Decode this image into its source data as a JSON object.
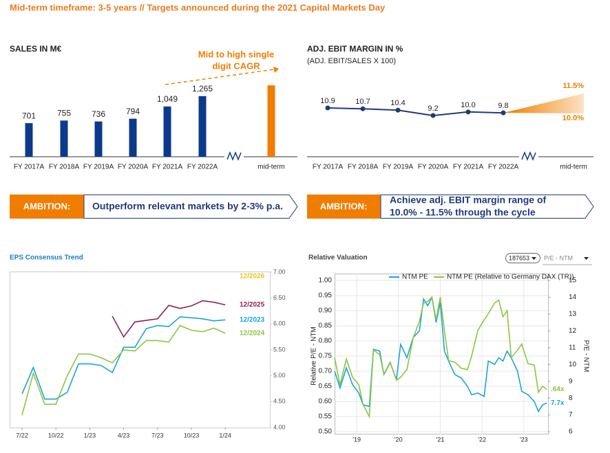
{
  "header": {
    "title": "Mid-term timeframe: 3-5 years // Targets announced during the 2021 Capital Markets Day"
  },
  "chart_data": [
    {
      "type": "bar",
      "title": "SALES IN M€",
      "categories": [
        "FY 2017A",
        "FY 2018A",
        "FY 2019A",
        "FY 2020A",
        "FY 2021A",
        "FY 2022A",
        "mid-term"
      ],
      "values": [
        701,
        755,
        736,
        794,
        1049,
        1265,
        1490
      ],
      "value_labels": [
        "701",
        "755",
        "736",
        "794",
        "1,049",
        "1,265",
        null
      ],
      "colors": [
        "#0b3a8c",
        "#0b3a8c",
        "#0b3a8c",
        "#0b3a8c",
        "#0b3a8c",
        "#0b3a8c",
        "#f07d00"
      ],
      "annotation": [
        "Mid to high single",
        "digit CAGR"
      ]
    },
    {
      "type": "line",
      "title": "ADJ. EBIT MARGIN IN %",
      "subtitle": "(ADJ. EBIT/SALES X 100)",
      "categories": [
        "FY 2017A",
        "FY 2018A",
        "FY 2019A",
        "FY 2020A",
        "FY 2021A",
        "FY 2022A",
        "mid-term"
      ],
      "values": [
        10.9,
        10.7,
        10.4,
        9.2,
        10.0,
        9.8,
        null
      ],
      "value_labels": [
        "10.9",
        "10.7",
        "10.4",
        "9.2",
        "10.0",
        "9.8",
        null
      ],
      "color": "#1f3a7a",
      "target": {
        "values": [
          10.0,
          11.5
        ],
        "labels": [
          "10.0%",
          "11.5%"
        ],
        "color": "#f07d00"
      }
    },
    {
      "type": "line",
      "title": "EPS Consensus Trend",
      "x": [
        "7/22",
        "8/22",
        "9/22",
        "10/22",
        "11/22",
        "12/22",
        "1/23",
        "2/23",
        "3/23",
        "4/23",
        "5/23",
        "6/23",
        "7/23",
        "8/23",
        "9/23",
        "10/23",
        "11/23",
        "12/23",
        "1/24"
      ],
      "xticks": [
        "7/22",
        "10/22",
        "1/23",
        "4/23",
        "7/23",
        "10/23",
        "1/24"
      ],
      "ylim": [
        4.0,
        7.0
      ],
      "yticks": [
        {
          "value": 4.0,
          "label": "4.00"
        },
        {
          "value": 4.5,
          "label": "4.50"
        },
        {
          "value": 5.0,
          "label": "5.00"
        },
        {
          "value": 5.5,
          "label": "5.50"
        },
        {
          "value": 6.0,
          "label": "6.00"
        },
        {
          "value": 6.5,
          "label": "6.50"
        },
        {
          "value": 7.0,
          "label": "7.00"
        }
      ],
      "series": [
        {
          "name": "12/2026",
          "color": "#e8c619",
          "values": [
            null,
            null,
            null,
            null,
            null,
            null,
            null,
            null,
            null,
            null,
            null,
            null,
            null,
            null,
            null,
            null,
            null,
            null,
            null
          ]
        },
        {
          "name": "12/2025",
          "color": "#8b2252",
          "values": [
            null,
            null,
            null,
            null,
            null,
            null,
            null,
            null,
            6.15,
            5.75,
            6.04,
            6.07,
            6.1,
            6.36,
            6.3,
            6.35,
            6.45,
            6.42,
            6.37
          ]
        },
        {
          "name": "12/2023",
          "color": "#1aa3e0",
          "values": [
            4.65,
            5.16,
            4.55,
            4.55,
            4.68,
            5.23,
            5.23,
            5.2,
            5.06,
            5.55,
            5.55,
            5.91,
            5.97,
            5.95,
            6.14,
            6.12,
            6.1,
            6.06,
            6.08
          ]
        },
        {
          "name": "12/2024",
          "color": "#8cc63f",
          "values": [
            4.24,
            5.05,
            4.45,
            4.45,
            5.0,
            5.42,
            5.42,
            5.35,
            5.25,
            5.5,
            5.48,
            5.68,
            5.68,
            5.65,
            5.97,
            5.88,
            5.85,
            5.92,
            5.82
          ]
        }
      ]
    },
    {
      "type": "line",
      "title": "Relative Valuation",
      "controls": [
        "187653",
        "P/E - NTM"
      ],
      "x": [
        2018.47,
        2018.6,
        2018.75,
        2018.9,
        2019.05,
        2019.15,
        2019.3,
        2019.4,
        2019.55,
        2019.65,
        2019.8,
        2019.95,
        2020.05,
        2020.2,
        2020.35,
        2020.5,
        2020.6,
        2020.7,
        2020.8,
        2020.9,
        2021.0,
        2021.1,
        2021.2,
        2021.35,
        2021.5,
        2021.65,
        2021.75,
        2021.9,
        2022.05,
        2022.15,
        2022.3,
        2022.4,
        2022.5,
        2022.6,
        2022.7,
        2022.85,
        2022.95,
        2023.1,
        2023.25,
        2023.35,
        2023.45,
        2023.55
      ],
      "xlim": [
        2018.47,
        2023.58
      ],
      "xticks": [
        {
          "value": 2019,
          "label": "'19"
        },
        {
          "value": 2020,
          "label": "'20"
        },
        {
          "value": 2021,
          "label": "'21"
        },
        {
          "value": 2022,
          "label": "'22"
        },
        {
          "value": 2023,
          "label": "'23"
        }
      ],
      "ylim": [
        0.5,
        1.0
      ],
      "yticks": [
        {
          "value": 0.5,
          "label": "0.50"
        },
        {
          "value": 0.55,
          "label": "0.55"
        },
        {
          "value": 0.6,
          "label": "0.60"
        },
        {
          "value": 0.65,
          "label": "0.65"
        },
        {
          "value": 0.7,
          "label": "0.70"
        },
        {
          "value": 0.75,
          "label": "0.75"
        },
        {
          "value": 0.8,
          "label": "0.80"
        },
        {
          "value": 0.85,
          "label": "0.85"
        },
        {
          "value": 0.9,
          "label": "0.90"
        },
        {
          "value": 0.95,
          "label": "0.95"
        },
        {
          "value": 1.0,
          "label": "1.00"
        }
      ],
      "y2lim": [
        6,
        15
      ],
      "y2ticks": [
        6,
        7,
        8,
        9,
        10,
        11,
        12,
        13,
        14,
        15
      ],
      "ylabel": "Relative P/E - NTM",
      "y2label": "P/E - NTM",
      "grid": true,
      "series": [
        {
          "name": "NTM PE",
          "color": "#1aa3e0",
          "axis": "y2",
          "end_label": "7.7x",
          "values": [
            9.6,
            8.6,
            9.8,
            8.8,
            8.3,
            7.6,
            7.5,
            10.9,
            10.8,
            9.4,
            10.1,
            9.1,
            11.2,
            10.4,
            11.6,
            12.0,
            13.9,
            13.5,
            14.0,
            12.5,
            13.7,
            10.8,
            10.2,
            9.4,
            9.2,
            8.7,
            8.2,
            8.3,
            8.1,
            10.2,
            10.0,
            10.4,
            10.2,
            10.8,
            10.4,
            9.6,
            8.4,
            8.2,
            7.8,
            7.2,
            7.6,
            7.7
          ]
        },
        {
          "name": "NTM PE (Relative to Germany DAX (TR))",
          "color": "#8cc63f",
          "end_label": ".64x",
          "values": [
            0.745,
            0.655,
            0.74,
            0.68,
            0.655,
            0.59,
            0.55,
            0.77,
            0.755,
            0.69,
            0.73,
            0.67,
            0.68,
            0.705,
            0.81,
            0.865,
            0.925,
            0.93,
            0.945,
            0.87,
            0.945,
            0.835,
            0.735,
            0.73,
            0.71,
            0.705,
            0.75,
            0.835,
            0.87,
            0.89,
            0.925,
            0.935,
            0.88,
            0.9,
            0.745,
            0.77,
            0.79,
            0.725,
            0.72,
            0.63,
            0.65,
            0.64
          ]
        }
      ]
    }
  ],
  "ambitions": [
    {
      "label": "AMBITION:",
      "text": [
        "Outperform relevant markets by 2-3% p.a."
      ]
    },
    {
      "label": "AMBITION:",
      "text": [
        "Achieve adj. EBIT margin range of",
        "10.0% - 11.5% through the cycle"
      ]
    }
  ]
}
